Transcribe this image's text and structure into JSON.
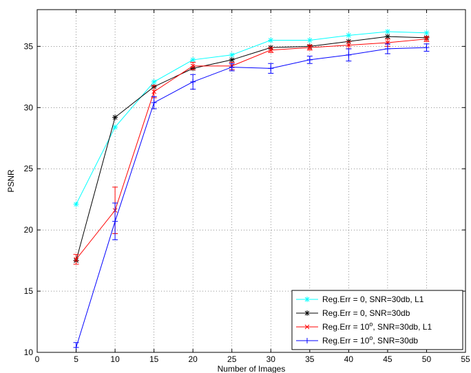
{
  "chart_data": {
    "type": "line",
    "title": "",
    "xlabel": "Number of Images",
    "ylabel": "PSNR",
    "xlim": [
      0,
      55
    ],
    "ylim": [
      10,
      38
    ],
    "xticks": [
      0,
      5,
      10,
      15,
      20,
      25,
      30,
      35,
      40,
      45,
      50,
      55
    ],
    "yticks": [
      10,
      15,
      20,
      25,
      30,
      35
    ],
    "grid": true,
    "legend_position": "bottom-right",
    "x": [
      5,
      10,
      15,
      20,
      25,
      30,
      35,
      40,
      45,
      50
    ],
    "series": [
      {
        "name": "Reg.Err = 0, SNR=30db, L1",
        "legend_parts": [
          "Reg.Err = 0, SNR=30db, L1"
        ],
        "color": "#00ffff",
        "marker": "asterisk",
        "values": [
          22.1,
          28.4,
          32.1,
          33.9,
          34.3,
          35.5,
          35.5,
          35.9,
          36.2,
          36.1
        ]
      },
      {
        "name": "Reg.Err = 0, SNR=30db",
        "legend_parts": [
          "Reg.Err = 0, SNR=30db"
        ],
        "color": "#000000",
        "marker": "asterisk",
        "values": [
          17.5,
          29.2,
          31.7,
          33.2,
          33.9,
          34.9,
          35.0,
          35.4,
          35.8,
          35.7
        ]
      },
      {
        "name": "Reg.Err = 10o, SNR=30db, L1",
        "legend_parts": [
          "Reg.Err = 10",
          "o",
          ", SNR=30db, L1"
        ],
        "color": "#ff0000",
        "marker": "x",
        "values": [
          17.6,
          21.6,
          31.3,
          33.4,
          33.4,
          34.7,
          34.9,
          35.1,
          35.3,
          35.6
        ],
        "errors": [
          0.4,
          1.9,
          0.5,
          0.3,
          0.3,
          0.2,
          0.2,
          0.3,
          0.3,
          0.2
        ]
      },
      {
        "name": "Reg.Err = 10o, SNR=30db",
        "legend_parts": [
          "Reg.Err = 10",
          "o",
          ", SNR=30db"
        ],
        "color": "#0000ff",
        "marker": "plus",
        "values": [
          10.4,
          20.7,
          30.4,
          32.1,
          33.3,
          33.2,
          33.9,
          34.3,
          34.8,
          34.9
        ],
        "errors": [
          0.4,
          1.5,
          0.5,
          0.6,
          0.3,
          0.4,
          0.3,
          0.5,
          0.4,
          0.3
        ]
      }
    ]
  }
}
